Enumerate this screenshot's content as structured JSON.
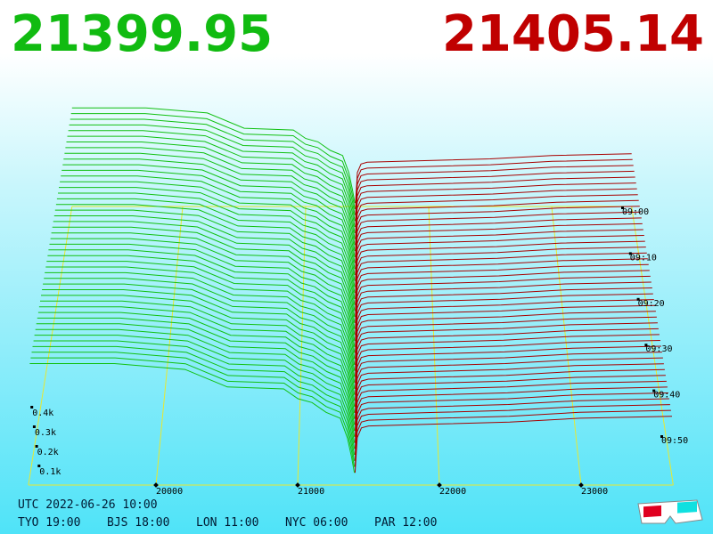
{
  "header": {
    "bid_price": "21399.95",
    "ask_price": "21405.14"
  },
  "chart_data": {
    "type": "depth3d",
    "xlim": [
      19100,
      23650
    ],
    "xticks": [
      20000,
      21000,
      22000,
      23000
    ],
    "zticks": [
      {
        "value": 0.1,
        "label": "0.1k"
      },
      {
        "value": 0.2,
        "label": "0.2k"
      },
      {
        "value": 0.3,
        "label": "0.3k"
      },
      {
        "value": 0.4,
        "label": "0.4k"
      }
    ],
    "time_labels": [
      "09:00",
      "09:10",
      "09:20",
      "09:30",
      "09:40",
      "09:50"
    ],
    "bids": {
      "color": "#11c011",
      "price": [
        19100,
        19700,
        20200,
        20500,
        20900,
        21000,
        21100,
        21200,
        21300,
        21350,
        21380,
        21399.95
      ],
      "depth": [
        0.58,
        0.58,
        0.55,
        0.46,
        0.45,
        0.4,
        0.38,
        0.33,
        0.3,
        0.2,
        0.1,
        0.02
      ]
    },
    "asks": {
      "color": "#a80000",
      "price": [
        21405.14,
        21420,
        21450,
        21500,
        22000,
        22500,
        23000,
        23650
      ],
      "depth": [
        0.02,
        0.2,
        0.25,
        0.26,
        0.27,
        0.28,
        0.3,
        0.31
      ]
    }
  },
  "footer": {
    "utc": "UTC 2022-06-26 10:00",
    "zones": [
      "TYO 19:00",
      "BJS 18:00",
      "LON 11:00",
      "NYC 06:00",
      "PAR 12:00"
    ]
  }
}
